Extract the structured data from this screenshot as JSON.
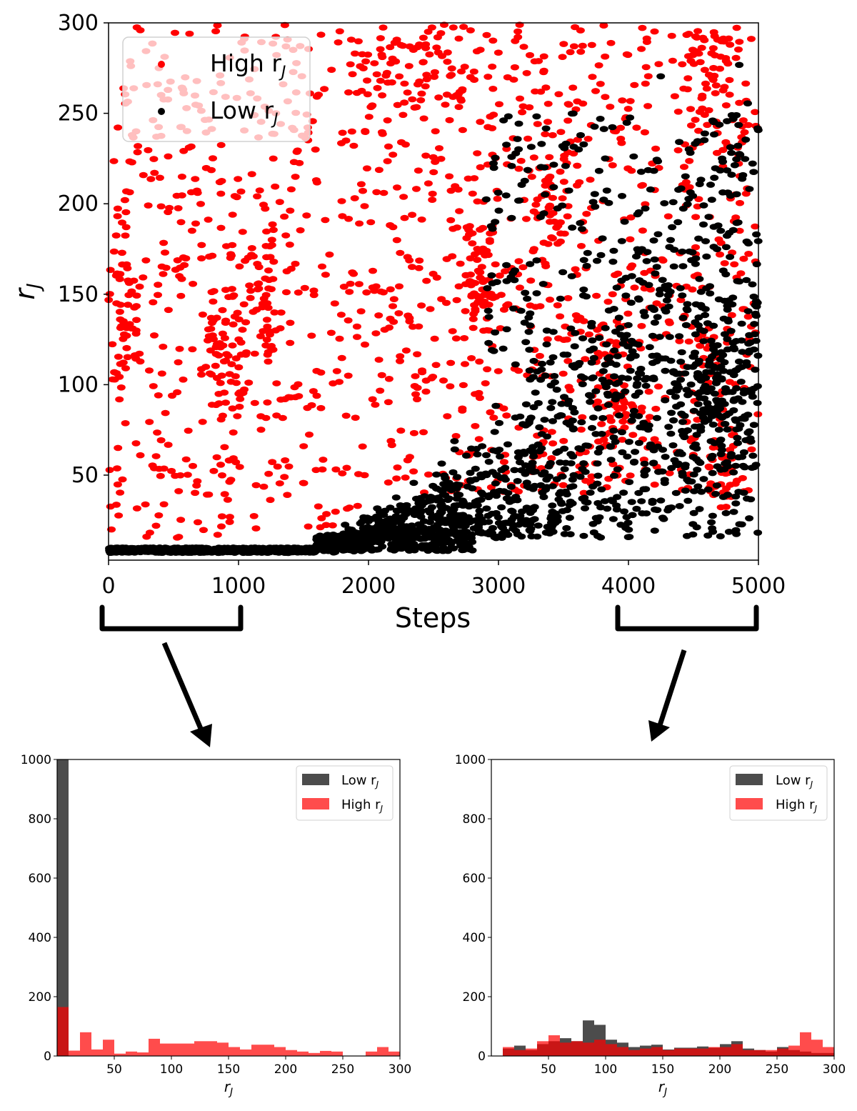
{
  "chart_data": [
    {
      "type": "scatter",
      "xlabel": "Steps",
      "ylabel_main": "r",
      "ylabel_sub": "J",
      "xlim": [
        0,
        5000
      ],
      "ylim": [
        3,
        300
      ],
      "xticks": [
        0,
        1000,
        2000,
        3000,
        4000,
        5000
      ],
      "yticks": [
        50,
        100,
        150,
        200,
        250,
        300
      ],
      "grid": false,
      "legend_position": "top-left",
      "series": [
        {
          "name_main": "High r",
          "name_sub": "J",
          "color": "#ff0000"
        },
        {
          "name_main": "Low r",
          "name_sub": "J",
          "color": "#000000"
        }
      ]
    },
    {
      "type": "bar",
      "chart": "histogram",
      "xlabel_main": "r",
      "xlabel_sub": "J",
      "xlim": [
        0,
        300
      ],
      "ylim": [
        0,
        1000
      ],
      "xticks": [
        50,
        100,
        150,
        200,
        250,
        300
      ],
      "yticks": [
        0,
        200,
        400,
        600,
        800,
        1000
      ],
      "legend_position": "top-right",
      "series": [
        {
          "name_main": "Low r",
          "name_sub": "J",
          "color": "#000000",
          "opacity": 0.7,
          "bins": [
            [
              0,
              10,
              1000
            ]
          ]
        },
        {
          "name_main": "High r",
          "name_sub": "J",
          "color": "#ff0000",
          "opacity": 0.7,
          "bins": [
            [
              0,
              10,
              165
            ],
            [
              10,
              20,
              18
            ],
            [
              20,
              30,
              80
            ],
            [
              30,
              40,
              22
            ],
            [
              40,
              50,
              55
            ],
            [
              50,
              60,
              8
            ],
            [
              60,
              70,
              15
            ],
            [
              70,
              80,
              12
            ],
            [
              80,
              90,
              58
            ],
            [
              90,
              100,
              42
            ],
            [
              100,
              110,
              42
            ],
            [
              110,
              120,
              42
            ],
            [
              120,
              130,
              50
            ],
            [
              130,
              140,
              50
            ],
            [
              140,
              150,
              45
            ],
            [
              150,
              160,
              30
            ],
            [
              160,
              170,
              22
            ],
            [
              170,
              180,
              38
            ],
            [
              180,
              190,
              38
            ],
            [
              190,
              200,
              30
            ],
            [
              200,
              210,
              20
            ],
            [
              210,
              220,
              15
            ],
            [
              220,
              230,
              10
            ],
            [
              230,
              240,
              17
            ],
            [
              240,
              250,
              15
            ],
            [
              250,
              260,
              0
            ],
            [
              260,
              270,
              0
            ],
            [
              270,
              280,
              15
            ],
            [
              280,
              290,
              30
            ],
            [
              290,
              300,
              15
            ]
          ]
        }
      ]
    },
    {
      "type": "bar",
      "chart": "histogram",
      "xlabel_main": "r",
      "xlabel_sub": "J",
      "xlim": [
        0,
        300
      ],
      "ylim": [
        0,
        1000
      ],
      "xticks": [
        50,
        100,
        150,
        200,
        250,
        300
      ],
      "yticks": [
        0,
        200,
        400,
        600,
        800,
        1000
      ],
      "legend_position": "top-right",
      "series": [
        {
          "name_main": "Low r",
          "name_sub": "J",
          "color": "#000000",
          "opacity": 0.7,
          "bins": [
            [
              10,
              20,
              25
            ],
            [
              20,
              30,
              35
            ],
            [
              30,
              40,
              20
            ],
            [
              40,
              50,
              40
            ],
            [
              50,
              60,
              50
            ],
            [
              60,
              70,
              60
            ],
            [
              70,
              80,
              50
            ],
            [
              80,
              90,
              120
            ],
            [
              90,
              100,
              105
            ],
            [
              100,
              110,
              55
            ],
            [
              110,
              120,
              45
            ],
            [
              120,
              130,
              30
            ],
            [
              130,
              140,
              35
            ],
            [
              140,
              150,
              38
            ],
            [
              150,
              160,
              22
            ],
            [
              160,
              170,
              28
            ],
            [
              170,
              180,
              28
            ],
            [
              180,
              190,
              32
            ],
            [
              190,
              200,
              28
            ],
            [
              200,
              210,
              40
            ],
            [
              210,
              220,
              50
            ],
            [
              220,
              230,
              25
            ],
            [
              230,
              240,
              20
            ],
            [
              240,
              250,
              15
            ],
            [
              250,
              260,
              30
            ],
            [
              260,
              270,
              20
            ],
            [
              270,
              280,
              15
            ],
            [
              280,
              290,
              10
            ],
            [
              290,
              300,
              10
            ]
          ]
        },
        {
          "name_main": "High r",
          "name_sub": "J",
          "color": "#ff0000",
          "opacity": 0.7,
          "bins": [
            [
              10,
              20,
              30
            ],
            [
              20,
              30,
              20
            ],
            [
              30,
              40,
              25
            ],
            [
              40,
              50,
              50
            ],
            [
              50,
              60,
              70
            ],
            [
              60,
              70,
              45
            ],
            [
              70,
              80,
              50
            ],
            [
              80,
              90,
              45
            ],
            [
              90,
              100,
              55
            ],
            [
              100,
              110,
              40
            ],
            [
              110,
              120,
              30
            ],
            [
              120,
              130,
              20
            ],
            [
              130,
              140,
              25
            ],
            [
              140,
              150,
              30
            ],
            [
              150,
              160,
              20
            ],
            [
              160,
              170,
              25
            ],
            [
              170,
              180,
              25
            ],
            [
              180,
              190,
              25
            ],
            [
              190,
              200,
              30
            ],
            [
              200,
              210,
              30
            ],
            [
              210,
              220,
              40
            ],
            [
              220,
              230,
              20
            ],
            [
              230,
              240,
              20
            ],
            [
              240,
              250,
              20
            ],
            [
              250,
              260,
              25
            ],
            [
              260,
              270,
              35
            ],
            [
              270,
              280,
              80
            ],
            [
              280,
              290,
              55
            ],
            [
              290,
              300,
              30
            ]
          ]
        }
      ]
    }
  ]
}
